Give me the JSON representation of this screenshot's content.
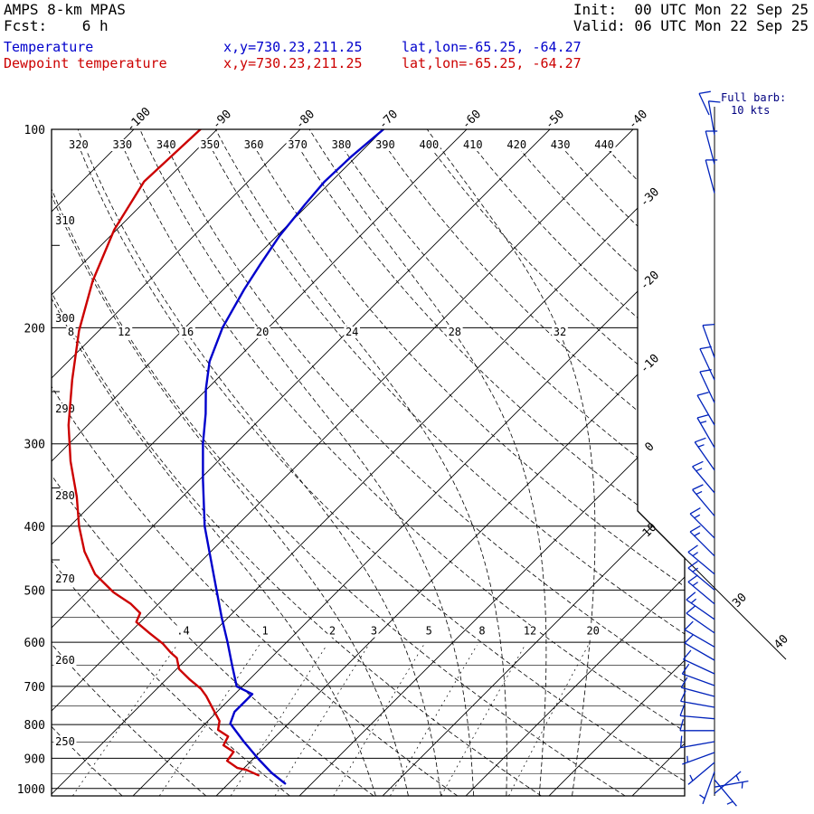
{
  "header": {
    "model": "AMPS 8-km MPAS",
    "fcst": "Fcst:    6 h",
    "init": "Init:  00 UTC Mon 22 Sep 25",
    "valid": "Valid: 06 UTC Mon 22 Sep 25",
    "temp_label": "Temperature",
    "temp_xy": "x,y=730.23,211.25",
    "temp_latlon": "lat,lon=-65.25, -64.27",
    "dew_label": "Dewpoint temperature",
    "dew_xy": "x,y=730.23,211.25",
    "dew_latlon": "lat,lon=-65.25, -64.27"
  },
  "wind_legend": {
    "line1": "Full barb:",
    "line2": "10 kts"
  },
  "chart_data": {
    "type": "skewt-logp",
    "pressure_axis": {
      "unit": "hPa",
      "major": [
        100,
        200,
        300,
        400,
        500,
        600,
        700,
        800,
        900,
        1000
      ],
      "minor": [
        550,
        650,
        750,
        850,
        950
      ],
      "ticks": [
        150,
        250,
        350,
        450
      ],
      "range": [
        100,
        1025
      ]
    },
    "isotherms": {
      "unit": "C",
      "step": 10,
      "range": [
        -110,
        40
      ],
      "top_labels": [
        -100,
        -90,
        -80,
        -70,
        -60,
        -50,
        -40
      ],
      "right_labels": [
        -30,
        -20,
        -10,
        0,
        10,
        30,
        40
      ]
    },
    "dry_adiabats": {
      "unit": "K",
      "step": 10,
      "range": [
        250,
        500
      ],
      "top_labels": [
        320,
        330,
        340,
        350,
        360,
        370,
        380,
        390,
        400,
        410,
        420,
        430,
        440
      ],
      "left_labels": [
        310,
        300,
        290,
        280,
        270,
        260,
        250
      ]
    },
    "moist_adiabats": {
      "unit": "C",
      "values": [
        8,
        12,
        16,
        20,
        24,
        28,
        32
      ]
    },
    "mixing_ratio": {
      "unit": "g/kg",
      "values": [
        0.4,
        1,
        2,
        3,
        5,
        8,
        12,
        20
      ],
      "labels": [
        ".4",
        "1",
        "2",
        "3",
        "5",
        "8",
        "12",
        "20"
      ]
    },
    "temperature_profile": {
      "name": "Temperature",
      "color": "#0000cc",
      "points": [
        [
          983,
          -3.2
        ],
        [
          947,
          -6.1
        ],
        [
          903,
          -9.3
        ],
        [
          849,
          -13.2
        ],
        [
          797,
          -17.0
        ],
        [
          765,
          -17.9
        ],
        [
          740,
          -17.9
        ],
        [
          719,
          -17.9
        ],
        [
          700,
          -20.7
        ],
        [
          650,
          -23.8
        ],
        [
          600,
          -27.1
        ],
        [
          550,
          -30.8
        ],
        [
          500,
          -34.7
        ],
        [
          450,
          -39.0
        ],
        [
          400,
          -43.8
        ],
        [
          374,
          -46.2
        ],
        [
          340,
          -49.6
        ],
        [
          300,
          -53.9
        ],
        [
          270,
          -57.2
        ],
        [
          248,
          -60.1
        ],
        [
          225,
          -63.0
        ],
        [
          200,
          -65.5
        ],
        [
          175,
          -67.5
        ],
        [
          160,
          -68.6
        ],
        [
          145,
          -69.7
        ],
        [
          130,
          -70.4
        ],
        [
          120,
          -70.8
        ],
        [
          110,
          -70.6
        ],
        [
          100,
          -70.0
        ]
      ]
    },
    "dewpoint_profile": {
      "name": "Dewpoint temperature",
      "color": "#cc0000",
      "points": [
        [
          955,
          -7.4
        ],
        [
          937,
          -9.5
        ],
        [
          931,
          -10.8
        ],
        [
          908,
          -12.9
        ],
        [
          880,
          -13.2
        ],
        [
          860,
          -15.2
        ],
        [
          834,
          -15.7
        ],
        [
          815,
          -17.7
        ],
        [
          790,
          -18.6
        ],
        [
          758,
          -20.8
        ],
        [
          724,
          -23.2
        ],
        [
          706,
          -24.7
        ],
        [
          684,
          -27.1
        ],
        [
          659,
          -29.7
        ],
        [
          634,
          -31.3
        ],
        [
          622,
          -32.7
        ],
        [
          603,
          -34.7
        ],
        [
          581,
          -37.6
        ],
        [
          559,
          -40.5
        ],
        [
          542,
          -41.1
        ],
        [
          525,
          -43.3
        ],
        [
          504,
          -46.8
        ],
        [
          473,
          -51.2
        ],
        [
          437,
          -55.2
        ],
        [
          400,
          -58.9
        ],
        [
          361,
          -62.7
        ],
        [
          319,
          -67.7
        ],
        [
          281,
          -72.3
        ],
        [
          240,
          -77.3
        ],
        [
          202,
          -82.4
        ],
        [
          170,
          -86.7
        ],
        [
          142,
          -90.3
        ],
        [
          120,
          -92.5
        ],
        [
          100,
          -92.0
        ]
      ]
    },
    "wind_barbs": {
      "full_barb_kts": 10,
      "color": "#0022bb",
      "points": [
        [
          102,
          350,
          10
        ],
        [
          113,
          345,
          10
        ],
        [
          125,
          345,
          10
        ],
        [
          222,
          340,
          10
        ],
        [
          240,
          335,
          10
        ],
        [
          260,
          335,
          10
        ],
        [
          281,
          330,
          10
        ],
        [
          304,
          330,
          15
        ],
        [
          329,
          325,
          15
        ],
        [
          356,
          320,
          15
        ],
        [
          386,
          320,
          15
        ],
        [
          417,
          315,
          15
        ],
        [
          444,
          315,
          15
        ],
        [
          473,
          310,
          15
        ],
        [
          500,
          310,
          15
        ],
        [
          525,
          310,
          15
        ],
        [
          554,
          305,
          15
        ],
        [
          581,
          305,
          10
        ],
        [
          610,
          300,
          10
        ],
        [
          639,
          300,
          10
        ],
        [
          670,
          295,
          10
        ],
        [
          698,
          290,
          10
        ],
        [
          725,
          285,
          10
        ],
        [
          753,
          280,
          10
        ],
        [
          784,
          275,
          10
        ],
        [
          817,
          270,
          10
        ],
        [
          849,
          260,
          10
        ],
        [
          882,
          250,
          5
        ],
        [
          913,
          230,
          5
        ],
        [
          943,
          200,
          5
        ],
        [
          970,
          140,
          5
        ],
        [
          995,
          80,
          5
        ],
        [
          1018,
          50,
          5
        ]
      ]
    }
  }
}
